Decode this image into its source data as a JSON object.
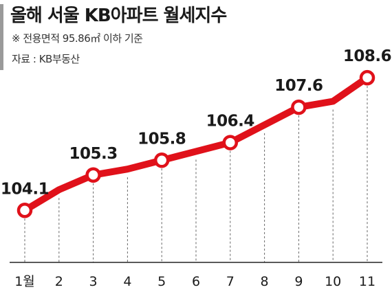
{
  "header": {
    "title": "올해 서울 KB아파트 월세지수",
    "subtitle": "※ 전용면적 95.86㎡ 이하 기준",
    "source": "자료 : KB부동산"
  },
  "chart_data": {
    "type": "line",
    "title": "올해 서울 KB아파트 월세지수",
    "categories": [
      "1월",
      "2",
      "3",
      "4",
      "5",
      "6",
      "7",
      "8",
      "9",
      "10",
      "11"
    ],
    "values": [
      104.1,
      104.8,
      105.3,
      105.5,
      105.8,
      106.1,
      106.4,
      107.0,
      107.6,
      107.8,
      108.6
    ],
    "data_labels": [
      {
        "index": 0,
        "text": "104.1"
      },
      {
        "index": 2,
        "text": "105.3"
      },
      {
        "index": 4,
        "text": "105.8"
      },
      {
        "index": 6,
        "text": "106.4"
      },
      {
        "index": 8,
        "text": "107.6"
      },
      {
        "index": 10,
        "text": "108.6"
      }
    ],
    "ylim": [
      103.5,
      109.0
    ],
    "line_color": "#e0111a",
    "grid": "dashed vertical lines at each month"
  }
}
